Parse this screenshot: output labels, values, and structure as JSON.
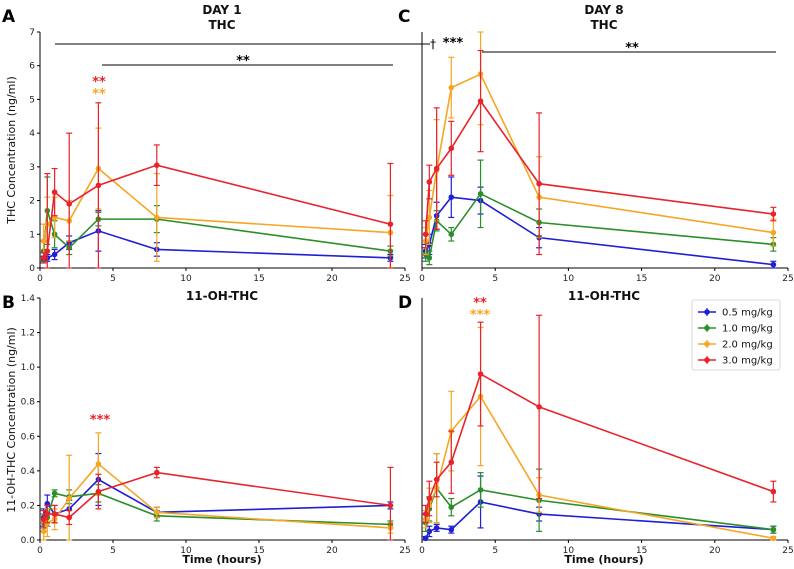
{
  "figure": {
    "letters": [
      "A",
      "B",
      "C",
      "D"
    ],
    "day_titles": {
      "A": "DAY 1",
      "C": "DAY 8"
    },
    "subtitles": {
      "A": "THC",
      "B": "11-OH-THC",
      "C": "THC",
      "D": "11-OH-THC"
    },
    "ylabel_top": "THC Concentration (ng/ml)",
    "ylabel_bottom": "11-OH-THC Concentration (ng/ml)",
    "xlabel": "Time (hours)",
    "legend": [
      "0.5 mg/kg",
      "1.0 mg/kg",
      "2.0 mg/kg",
      "3.0 mg/kg"
    ],
    "colors": {
      "blue": "#1f1fd6",
      "green": "#2a8f2a",
      "orange": "#f5a623",
      "red": "#e8232a",
      "bracket": "#000000"
    },
    "annotations": {
      "A_stars": "**",
      "A_red_stars": "**",
      "A_orange_stars": "**",
      "A_dagger": "†",
      "B_red_stars": "***",
      "C_stars_left": "***",
      "C_stars_right": "**",
      "D_red_stars": "**",
      "D_orange_stars": "***"
    }
  },
  "chart_data": [
    {
      "panel": "A",
      "type": "line",
      "title": "DAY 1",
      "subtitle": "THC",
      "xlabel": "",
      "ylabel": "THC Concentration (ng/ml)",
      "xlim": [
        0,
        25
      ],
      "ylim": [
        0,
        7
      ],
      "xticks": [
        0,
        5,
        10,
        15,
        20,
        25
      ],
      "yticks": [
        0,
        1,
        2,
        3,
        4,
        5,
        6,
        7
      ],
      "x": [
        0.25,
        0.5,
        1,
        2,
        4,
        8,
        24
      ],
      "series": [
        {
          "name": "0.5 mg/kg",
          "color": "blue",
          "values": [
            0.25,
            0.3,
            0.4,
            0.75,
            1.1,
            0.55,
            0.3
          ],
          "err": [
            0.1,
            0.1,
            0.15,
            0.2,
            0.6,
            0.2,
            0.1
          ]
        },
        {
          "name": "1.0 mg/kg",
          "color": "green",
          "values": [
            0.5,
            1.7,
            1.0,
            0.6,
            1.45,
            1.45,
            0.5
          ],
          "err": [
            0.3,
            1.0,
            0.4,
            0.2,
            0.2,
            0.4,
            0.15
          ]
        },
        {
          "name": "2.0 mg/kg",
          "color": "orange",
          "values": [
            0.8,
            1.3,
            1.5,
            1.4,
            2.95,
            1.5,
            1.05
          ],
          "err": [
            0.5,
            0.8,
            0.6,
            0.6,
            1.2,
            1.3,
            1.1
          ]
        },
        {
          "name": "3.0 mg/kg",
          "color": "red",
          "values": [
            0.3,
            0.5,
            2.25,
            1.9,
            2.45,
            3.05,
            1.3
          ],
          "err": [
            0.15,
            2.3,
            0.7,
            2.1,
            2.45,
            0.6,
            1.8
          ]
        }
      ]
    },
    {
      "panel": "B",
      "type": "line",
      "subtitle": "11-OH-THC",
      "xlabel": "Time (hours)",
      "ylabel": "11-OH-THC Concentration (ng/ml)",
      "xlim": [
        0,
        25
      ],
      "ylim": [
        0,
        1.4
      ],
      "xticks": [
        0,
        5,
        10,
        15,
        20,
        25
      ],
      "yticks": [
        0.0,
        0.2,
        0.4,
        0.6,
        0.8,
        1.0,
        1.2,
        1.4
      ],
      "x": [
        0.25,
        0.5,
        1,
        2,
        4,
        8,
        24
      ],
      "series": [
        {
          "name": "0.5 mg/kg",
          "color": "blue",
          "values": [
            0.13,
            0.21,
            0.15,
            0.18,
            0.35,
            0.16,
            0.2
          ],
          "err": [
            0.05,
            0.05,
            0.05,
            0.05,
            0.15,
            0.03,
            0.02
          ]
        },
        {
          "name": "1.0 mg/kg",
          "color": "green",
          "values": [
            0.1,
            0.13,
            0.27,
            0.25,
            0.27,
            0.14,
            0.09
          ],
          "err": [
            0.05,
            0.05,
            0.02,
            0.04,
            0.05,
            0.03,
            0.02
          ]
        },
        {
          "name": "2.0 mg/kg",
          "color": "orange",
          "values": [
            0.05,
            0.1,
            0.12,
            0.24,
            0.44,
            0.16,
            0.07
          ],
          "err": [
            0.05,
            0.08,
            0.06,
            0.25,
            0.18,
            0.03,
            0.03
          ]
        },
        {
          "name": "3.0 mg/kg",
          "color": "red",
          "values": [
            0.12,
            0.15,
            0.15,
            0.13,
            0.28,
            0.39,
            0.2
          ],
          "err": [
            0.05,
            0.05,
            0.05,
            0.04,
            0.1,
            0.03,
            0.22
          ]
        }
      ]
    },
    {
      "panel": "C",
      "type": "line",
      "title": "DAY 8",
      "subtitle": "THC",
      "xlim": [
        0,
        25
      ],
      "ylim": [
        0,
        7
      ],
      "xticks": [
        0,
        5,
        10,
        15,
        20,
        25
      ],
      "x": [
        0.25,
        0.5,
        1,
        2,
        4,
        8,
        24
      ],
      "series": [
        {
          "name": "0.5 mg/kg",
          "color": "blue",
          "values": [
            0.5,
            0.7,
            1.55,
            2.1,
            2.0,
            0.9,
            0.1
          ],
          "err": [
            0.2,
            0.3,
            0.4,
            0.6,
            0.4,
            0.3,
            0.1
          ]
        },
        {
          "name": "1.0 mg/kg",
          "color": "green",
          "values": [
            0.4,
            0.3,
            1.4,
            1.0,
            2.2,
            1.35,
            0.7
          ],
          "err": [
            0.2,
            0.2,
            0.3,
            0.2,
            1.0,
            0.4,
            0.2
          ]
        },
        {
          "name": "2.0 mg/kg",
          "color": "orange",
          "values": [
            0.8,
            1.5,
            2.9,
            5.35,
            5.75,
            2.1,
            1.05
          ],
          "err": [
            0.4,
            0.8,
            1.5,
            0.9,
            1.5,
            1.2,
            0.4
          ]
        },
        {
          "name": "3.0 mg/kg",
          "color": "red",
          "values": [
            1.0,
            2.55,
            2.95,
            3.55,
            4.95,
            2.5,
            1.6
          ],
          "err": [
            0.4,
            0.5,
            1.8,
            0.8,
            1.5,
            2.1,
            0.2
          ]
        }
      ]
    },
    {
      "panel": "D",
      "type": "line",
      "subtitle": "11-OH-THC",
      "xlabel": "Time (hours)",
      "xlim": [
        0,
        25
      ],
      "ylim": [
        0,
        1.4
      ],
      "xticks": [
        0,
        5,
        10,
        15,
        20,
        25
      ],
      "x": [
        0.25,
        0.5,
        1,
        2,
        4,
        8,
        24
      ],
      "legend_position": "top-right",
      "series": [
        {
          "name": "0.5 mg/kg",
          "color": "blue",
          "values": [
            0.01,
            0.05,
            0.07,
            0.06,
            0.22,
            0.15,
            0.06
          ],
          "err": [
            0.01,
            0.03,
            0.02,
            0.02,
            0.15,
            0.04,
            0.02
          ]
        },
        {
          "name": "1.0 mg/kg",
          "color": "green",
          "values": [
            0.1,
            0.18,
            0.3,
            0.19,
            0.29,
            0.23,
            0.06
          ],
          "err": [
            0.05,
            0.07,
            0.2,
            0.05,
            0.1,
            0.18,
            0.02
          ]
        },
        {
          "name": "2.0 mg/kg",
          "color": "orange",
          "values": [
            0.12,
            0.2,
            0.3,
            0.63,
            0.83,
            0.26,
            0.01
          ],
          "err": [
            0.05,
            0.1,
            0.2,
            0.23,
            0.4,
            0.1,
            0.01
          ]
        },
        {
          "name": "3.0 mg/kg",
          "color": "red",
          "values": [
            0.15,
            0.24,
            0.35,
            0.45,
            0.96,
            0.77,
            0.28
          ],
          "err": [
            0.05,
            0.1,
            0.1,
            0.18,
            0.3,
            0.53,
            0.06
          ]
        }
      ]
    }
  ]
}
